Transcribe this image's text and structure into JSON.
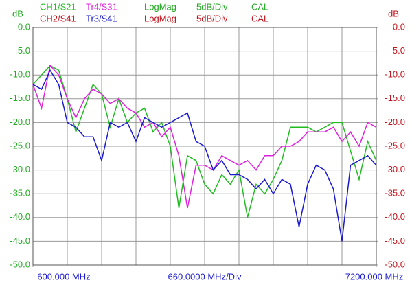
{
  "chart_data": {
    "type": "line",
    "header_row1": {
      "color": "#22aa22",
      "items": [
        "LogMag",
        "5dB/Div",
        "CAL"
      ]
    },
    "header_row2": {
      "color": "#c0141e",
      "channel": "CH2/S41",
      "items": [
        "LogMag",
        "5dB/Div",
        "CAL"
      ]
    },
    "ylabel": "dB",
    "y2label": "dB",
    "x_scale_label": "660.0000 MHz/Div",
    "x_divisions": 10,
    "grid": true,
    "x": [
      600,
      765,
      930,
      1095,
      1260,
      1425,
      1590,
      1755,
      1920,
      2085,
      2250,
      2415,
      2580,
      2745,
      2910,
      3075,
      3240,
      3405,
      3570,
      3735,
      3900,
      4065,
      4230,
      4395,
      4560,
      4725,
      4890,
      5055,
      5220,
      5385,
      5550,
      5715,
      5880,
      6045,
      6210,
      6375,
      6540,
      6705,
      6870,
      7035,
      7200
    ],
    "xlim": [
      600,
      7200
    ],
    "xticks": [
      {
        "value": 600,
        "label": "600.000 MHz"
      },
      {
        "value": 7200,
        "label": "7200.000 MHz"
      }
    ],
    "ylim": [
      -50,
      0
    ],
    "yticks": [
      {
        "value": 0,
        "label": "0.0"
      },
      {
        "value": -5,
        "label": "-5.0"
      },
      {
        "value": -10,
        "label": "-10.0"
      },
      {
        "value": -15,
        "label": "-15.0"
      },
      {
        "value": -20,
        "label": "-20.0"
      },
      {
        "value": -25,
        "label": "-25.0"
      },
      {
        "value": -30,
        "label": "-30.0"
      },
      {
        "value": -35,
        "label": "-35.0"
      },
      {
        "value": -40,
        "label": "-40.0"
      },
      {
        "value": -45,
        "label": "-45.0"
      },
      {
        "value": -50,
        "label": "-50.0"
      }
    ],
    "y2lim": [
      -50,
      0
    ],
    "y2ticks": [
      {
        "value": 0,
        "label": "0.0"
      },
      {
        "value": -5,
        "label": "-5.0"
      },
      {
        "value": -10,
        "label": "-10.0"
      },
      {
        "value": -15,
        "label": "-15.0"
      },
      {
        "value": -20,
        "label": "-20.0"
      },
      {
        "value": -25,
        "label": "-25.0"
      },
      {
        "value": -30,
        "label": "-30.0"
      },
      {
        "value": -35,
        "label": "-35.0"
      },
      {
        "value": -40,
        "label": "-40.0"
      },
      {
        "value": -45,
        "label": "-45.0"
      },
      {
        "value": -50,
        "label": "-50.0"
      }
    ],
    "ycolor": "#22aa22",
    "y2color": "#c0141e",
    "series": [
      {
        "name": "CH1/S21",
        "color": "#22bb22",
        "values": [
          -12,
          -10,
          -8,
          -9,
          -15,
          -22,
          -17,
          -12,
          -14,
          -21,
          -15,
          -20,
          -18,
          -17,
          -22,
          -20,
          -25,
          -38,
          -27,
          -28,
          -33,
          -35,
          -31,
          -33,
          -30,
          -40,
          -33,
          -35,
          -32,
          -28,
          -21,
          -21,
          -21,
          -22,
          -21,
          -20,
          -20,
          -26,
          -32,
          -24,
          -28
        ]
      },
      {
        "name": "Tr4/S31",
        "color": "#dd22dd",
        "values": [
          -12,
          -17,
          -8,
          -10,
          -15,
          -19,
          -15,
          -13,
          -14,
          -16,
          -15,
          -17,
          -18,
          -21,
          -20,
          -23,
          -21,
          -27,
          -38,
          -29,
          -29,
          -30,
          -27,
          -28,
          -29,
          -28,
          -30,
          -27,
          -27,
          -25,
          -25,
          -24,
          -22,
          -22,
          -22,
          -21,
          -24,
          -22,
          -25,
          -20,
          -21
        ]
      },
      {
        "name": "Tr3/S41",
        "color": "#1a1acc",
        "values": [
          -12,
          -13,
          -9,
          -12,
          -20,
          -21,
          -23,
          -23,
          -28,
          -20,
          -21,
          -20,
          -24,
          -19,
          -20,
          -21,
          -20,
          -19,
          -18,
          -24,
          -25,
          -30,
          -28,
          -31,
          -31,
          -32,
          -34,
          -32,
          -35,
          -32,
          -33,
          -42,
          -33,
          -29,
          -30,
          -34,
          -45,
          -29,
          -28,
          -27,
          -29
        ]
      }
    ]
  }
}
